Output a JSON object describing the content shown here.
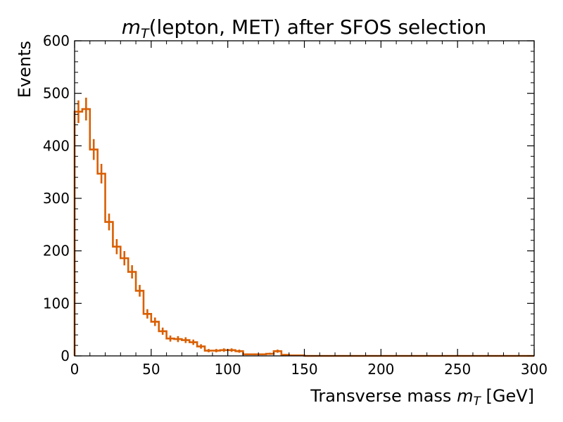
{
  "chart_data": {
    "type": "histogram",
    "title": {
      "prefix": "m",
      "sub": "T",
      "rest": "(lepton, MET) after SFOS selection"
    },
    "xlabel": {
      "prefix": "Transverse mass ",
      "var": "m",
      "sub": "T",
      "suffix": " [GeV]"
    },
    "ylabel": "Events",
    "xlim": [
      0,
      300
    ],
    "ylim": [
      0,
      600
    ],
    "x_ticks": [
      0,
      50,
      100,
      150,
      200,
      250,
      300
    ],
    "y_ticks": [
      0,
      100,
      200,
      300,
      400,
      500,
      600
    ],
    "bin_width": 5,
    "bin_edges_start": 0,
    "values": [
      465,
      470,
      393,
      347,
      255,
      208,
      186,
      160,
      124,
      80,
      65,
      47,
      33,
      32,
      30,
      26,
      18,
      10,
      10,
      11,
      11,
      9,
      3,
      3,
      3,
      4,
      9,
      2,
      1,
      1,
      0,
      0,
      0,
      0,
      0,
      0,
      0,
      0,
      0,
      0,
      0,
      0,
      0,
      0,
      0,
      0,
      0,
      0,
      0,
      0,
      0,
      0,
      0,
      0,
      0,
      0,
      0,
      0,
      0,
      0
    ],
    "line_color": "#d95f02",
    "grid": false
  }
}
